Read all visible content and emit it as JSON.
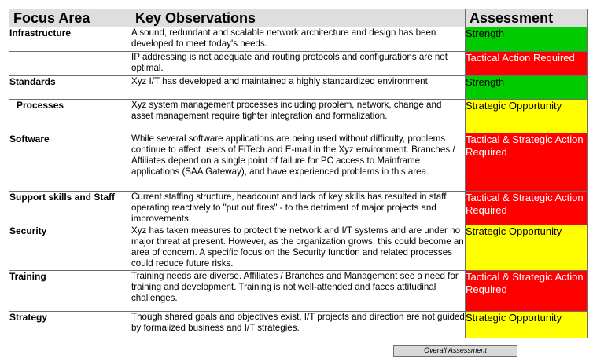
{
  "headers": {
    "focus_area": "Focus Area",
    "key_observations": "Key Observations",
    "assessment": "Assessment"
  },
  "rows": [
    {
      "area": "Infrastructure",
      "observation": "A sound, redundant and scalable network architecture and design has been developed to meet today's needs.",
      "assessment": "Strength",
      "color": "#00cc00"
    },
    {
      "area": "",
      "observation": "IP addressing is not adequate and routing protocols and configurations are not optimal.",
      "assessment": "Tactical Action Required",
      "color": "#ff0000"
    },
    {
      "area": "Standards",
      "observation": "Xyz I/T has developed and maintained a highly standardized environment.",
      "assessment": "Strength",
      "color": "#00cc00"
    },
    {
      "area": "Processes",
      "observation": "Xyz system management processes including problem, network, change and asset management require tighter integration and formalization.",
      "assessment": "Strategic Opportunity",
      "color": "#ffff00"
    },
    {
      "area": "Software",
      "observation": "While several software applications are being used without difficulty, problems continue to affect users of FiTech and E-mail in the Xyz environment.  Branches / Affiliates depend on a single point of failure for PC  access to Mainframe applications (SAA Gateway), and have experienced problems in this area.",
      "assessment": "Tactical & Strategic Action Required",
      "color": "#ff0000"
    },
    {
      "area": "Support skills and Staff",
      "observation": "Current staffing structure, headcount and lack of key skills has resulted in staff operating reactively to \"put out fires\" -  to the detriment of major projects and improvements.",
      "assessment": "Tactical & Strategic Action Required",
      "color": "#ff0000"
    },
    {
      "area": "Security",
      "observation": "Xyz has taken measures to protect the network and I/T systems and are under no major threat at present.  However, as the organization grows, this could become an area of concern.  A specific focus on the Security function and related processes could reduce future risks.",
      "assessment": "Strategic Opportunity",
      "color": "#ffff00"
    },
    {
      "area": "Training",
      "observation": "Training needs are diverse.  Affiliates / Branches and Management see a need for training and development. Training is not well-attended and faces attitudinal challenges.",
      "assessment": "Tactical & Strategic Action Required",
      "color": "#ff0000"
    },
    {
      "area": "Strategy",
      "observation": "Though shared goals and objectives exist, I/T projects and direction are not guided by formalized business and I/T strategies.",
      "assessment": "Strategic Opportunity",
      "color": "#ffff00"
    }
  ],
  "overall_assessment": "Overall Assessment"
}
